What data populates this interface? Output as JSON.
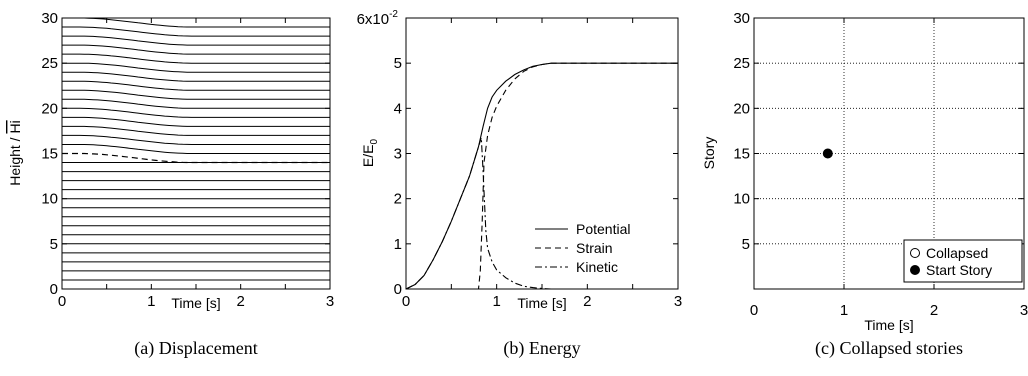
{
  "chart_data": [
    {
      "type": "line",
      "caption": "(a)  Displacement",
      "xlabel": "Time [s]",
      "ylabel": "Height / ",
      "ylabel_overbar": "Hi",
      "xlim": [
        0,
        3
      ],
      "ylim": [
        0,
        30
      ],
      "xticks": [
        "0",
        "1",
        "2",
        "3"
      ],
      "yticks": [
        "0",
        "5",
        "10",
        "15",
        "20",
        "25",
        "30"
      ],
      "grid": false,
      "description_series": {
        "stories_fixed": [
          0,
          1,
          2,
          3,
          4,
          5,
          6,
          7,
          8,
          9,
          10,
          11,
          12,
          13,
          14
        ],
        "stories_moving_solid": [
          16,
          17,
          18,
          19,
          20,
          21,
          22,
          23,
          24,
          25,
          26,
          27,
          28,
          29,
          30
        ],
        "moving_story_dashed": 15,
        "drop": 1.0,
        "drop_start_time": 0.2,
        "drop_end_time": 1.45
      }
    },
    {
      "type": "line",
      "caption": "(b)  Energy",
      "xlabel": "Time [s]",
      "ylabel": "E/E",
      "ylabel_sub": "0",
      "scale_label": "6x10",
      "scale_exp": "-2",
      "xlim": [
        0,
        3
      ],
      "ylim": [
        0,
        6
      ],
      "xticks": [
        "0",
        "1",
        "2",
        "3"
      ],
      "yticks": [
        "0",
        "1",
        "2",
        "3",
        "4",
        "5"
      ],
      "grid": false,
      "legend": "bottom-right",
      "series": [
        {
          "name": "Potential",
          "style": "solid",
          "x": [
            0,
            0.1,
            0.2,
            0.3,
            0.4,
            0.5,
            0.6,
            0.7,
            0.8,
            0.85,
            0.9,
            0.95,
            1.0,
            1.1,
            1.2,
            1.3,
            1.4,
            1.5,
            1.6,
            2.0,
            2.5,
            3.0
          ],
          "y": [
            0,
            0.1,
            0.3,
            0.65,
            1.05,
            1.5,
            2.0,
            2.5,
            3.15,
            3.6,
            4.0,
            4.25,
            4.4,
            4.6,
            4.75,
            4.85,
            4.93,
            4.97,
            5.0,
            5.0,
            5.0,
            5.0
          ]
        },
        {
          "name": "Strain",
          "style": "dashed",
          "x": [
            0,
            0.8,
            0.82,
            0.84,
            0.86,
            0.9,
            0.95,
            1.0,
            1.1,
            1.2,
            1.3,
            1.4,
            1.5,
            1.6,
            2.0,
            2.5,
            3.0
          ],
          "y": [
            0,
            0,
            0.4,
            1.5,
            2.8,
            3.4,
            3.8,
            4.05,
            4.4,
            4.65,
            4.82,
            4.92,
            4.97,
            5.0,
            5.0,
            5.0,
            5.0
          ]
        },
        {
          "name": "Kinetic",
          "style": "dashdot",
          "x": [
            0,
            0.1,
            0.2,
            0.3,
            0.4,
            0.5,
            0.6,
            0.7,
            0.8,
            0.83,
            0.85,
            0.88,
            0.9,
            0.95,
            1.0,
            1.1,
            1.2,
            1.3,
            1.4,
            1.5,
            1.6,
            2.0,
            3.0
          ],
          "y": [
            0,
            0.1,
            0.3,
            0.65,
            1.05,
            1.5,
            2.0,
            2.5,
            3.15,
            3.35,
            2.6,
            1.3,
            0.9,
            0.6,
            0.42,
            0.25,
            0.13,
            0.06,
            0.03,
            0.01,
            0,
            0,
            0
          ]
        }
      ]
    },
    {
      "type": "scatter",
      "caption": "(c)  Collapsed stories",
      "xlabel": "Time [s]",
      "ylabel": "Story",
      "xlim": [
        0,
        3
      ],
      "ylim": [
        0,
        30
      ],
      "xticks": [
        "0",
        "1",
        "2",
        "3"
      ],
      "yticks": [
        "5",
        "10",
        "15",
        "20",
        "25",
        "30"
      ],
      "grid": true,
      "legend": "bottom-right",
      "series": [
        {
          "name": "Collapsed",
          "marker": "open-circle",
          "x": [],
          "y": []
        },
        {
          "name": "Start Story",
          "marker": "filled-circle",
          "x": [
            0.82
          ],
          "y": [
            15
          ]
        }
      ]
    }
  ]
}
